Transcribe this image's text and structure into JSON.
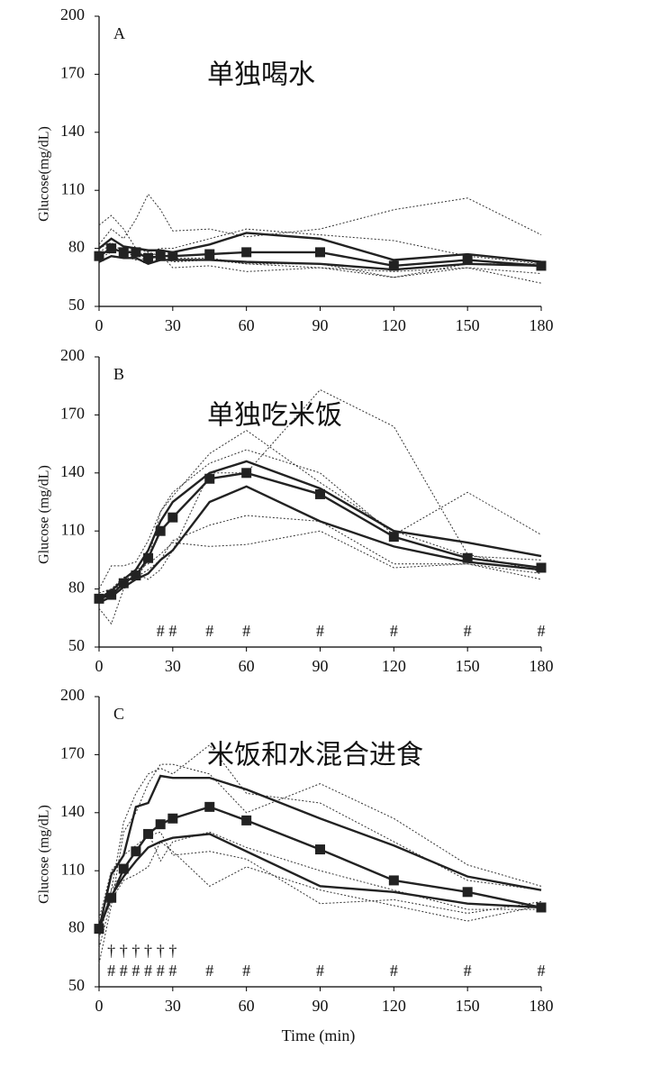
{
  "chart_data": [
    {
      "type": "line",
      "panel_label": "A",
      "title": "单独喝水",
      "title_color": "#e8392a",
      "ylabel": "Glucose(mg/dL)",
      "x": [
        0,
        5,
        10,
        15,
        20,
        25,
        30,
        45,
        60,
        90,
        120,
        150,
        180
      ],
      "xlim": [
        0,
        180
      ],
      "xticks": [
        0,
        30,
        60,
        90,
        120,
        150,
        180
      ],
      "ylim": [
        50,
        200
      ],
      "yticks": [
        50,
        80,
        110,
        140,
        170,
        200
      ],
      "series": [
        {
          "color": "#333333",
          "dash": true,
          "values": [
            92,
            97,
            90,
            80,
            78,
            76,
            73,
            74,
            72,
            70,
            68,
            70,
            62
          ]
        },
        {
          "color": "#333333",
          "dash": true,
          "values": [
            82,
            90,
            85,
            95,
            108,
            100,
            89,
            90,
            86,
            90,
            100,
            106,
            87
          ]
        },
        {
          "color": "#333333",
          "dash": true,
          "values": [
            75,
            78,
            80,
            77,
            76,
            78,
            75,
            75,
            72,
            72,
            65,
            70,
            67
          ]
        },
        {
          "color": "#333333",
          "dash": true,
          "values": [
            78,
            82,
            76,
            74,
            75,
            77,
            70,
            71,
            68,
            70,
            65,
            72,
            72
          ]
        },
        {
          "color": "#333333",
          "dash": true,
          "values": [
            80,
            83,
            78,
            76,
            78,
            80,
            80,
            85,
            90,
            87,
            84,
            76,
            72
          ]
        },
        {
          "color": "#222222",
          "dash": false,
          "values": [
            80,
            85,
            81,
            80,
            79,
            79,
            78,
            82,
            88,
            85,
            74,
            77,
            73
          ]
        },
        {
          "color": "#222222",
          "dash": false,
          "values": [
            73,
            76,
            75,
            75,
            72,
            74,
            74,
            74,
            73,
            72,
            69,
            72,
            71
          ]
        },
        {
          "color": "#222222",
          "dash": false,
          "marker": "square",
          "values": [
            76,
            80,
            78,
            78,
            75,
            76,
            76,
            77,
            78,
            78,
            71,
            74,
            71
          ]
        }
      ]
    },
    {
      "type": "line",
      "panel_label": "B",
      "title": "单独吃米饭",
      "title_color": "#e8392a",
      "ylabel": "Glucose (mg/dL)",
      "x": [
        0,
        5,
        10,
        15,
        20,
        25,
        30,
        45,
        60,
        90,
        120,
        150,
        180
      ],
      "xlim": [
        0,
        180
      ],
      "xticks": [
        0,
        30,
        60,
        90,
        120,
        150,
        180
      ],
      "ylim": [
        50,
        200
      ],
      "yticks": [
        50,
        80,
        110,
        140,
        170,
        200
      ],
      "series": [
        {
          "color": "#333333",
          "dash": true,
          "values": [
            70,
            62,
            80,
            85,
            95,
            120,
            130,
            145,
            152,
            140,
            108,
            130,
            108
          ]
        },
        {
          "color": "#333333",
          "dash": true,
          "values": [
            80,
            92,
            92,
            94,
            105,
            120,
            128,
            150,
            162,
            135,
            110,
            97,
            95
          ]
        },
        {
          "color": "#333333",
          "dash": true,
          "values": [
            75,
            80,
            86,
            88,
            85,
            90,
            100,
            140,
            140,
            183,
            164,
            98,
            89
          ]
        },
        {
          "color": "#333333",
          "dash": true,
          "values": [
            78,
            80,
            83,
            90,
            93,
            98,
            104,
            102,
            103,
            110,
            91,
            93,
            85
          ]
        },
        {
          "color": "#333333",
          "dash": true,
          "values": [
            74,
            78,
            84,
            86,
            90,
            95,
            105,
            113,
            118,
            115,
            93,
            93,
            88
          ]
        },
        {
          "color": "#222222",
          "dash": false,
          "values": [
            75,
            79,
            85,
            90,
            100,
            115,
            125,
            140,
            146,
            132,
            110,
            104,
            97
          ]
        },
        {
          "color": "#222222",
          "dash": false,
          "values": [
            73,
            76,
            81,
            85,
            88,
            95,
            100,
            125,
            133,
            115,
            102,
            94,
            90
          ]
        },
        {
          "color": "#222222",
          "dash": false,
          "marker": "square",
          "values": [
            75,
            77,
            83,
            87,
            96,
            110,
            117,
            137,
            140,
            129,
            107,
            96,
            91
          ]
        }
      ],
      "significance_hash": [
        {
          "x": 25,
          "text": "#"
        },
        {
          "x": 30,
          "text": "#"
        },
        {
          "x": 45,
          "text": "#"
        },
        {
          "x": 60,
          "text": "#"
        },
        {
          "x": 90,
          "text": "#"
        },
        {
          "x": 120,
          "text": "#"
        },
        {
          "x": 150,
          "text": "#"
        },
        {
          "x": 180,
          "text": "#"
        }
      ]
    },
    {
      "type": "line",
      "panel_label": "C",
      "title": "米饭和水混合进食",
      "title_color": "#e8392a",
      "ylabel": "Glucose (mg/dL)",
      "xlabel": "Time (min)",
      "x": [
        0,
        5,
        10,
        15,
        20,
        25,
        30,
        45,
        60,
        90,
        120,
        150,
        180
      ],
      "xlim": [
        0,
        180
      ],
      "xticks": [
        0,
        30,
        60,
        90,
        120,
        150,
        180
      ],
      "ylim": [
        50,
        200
      ],
      "yticks": [
        50,
        80,
        110,
        140,
        170,
        200
      ],
      "series": [
        {
          "color": "#333333",
          "dash": true,
          "values": [
            62,
            92,
            130,
            140,
            155,
            165,
            165,
            160,
            140,
            155,
            137,
            113,
            102
          ]
        },
        {
          "color": "#333333",
          "dash": true,
          "values": [
            75,
            100,
            135,
            150,
            160,
            163,
            160,
            175,
            150,
            145,
            125,
            105,
            100
          ]
        },
        {
          "color": "#333333",
          "dash": true,
          "values": [
            70,
            95,
            105,
            108,
            112,
            125,
            120,
            102,
            112,
            100,
            92,
            84,
            92
          ]
        },
        {
          "color": "#333333",
          "dash": true,
          "values": [
            78,
            100,
            110,
            120,
            130,
            115,
            125,
            130,
            122,
            110,
            100,
            90,
            90
          ]
        },
        {
          "color": "#333333",
          "dash": true,
          "values": [
            85,
            110,
            118,
            123,
            128,
            130,
            118,
            120,
            116,
            93,
            95,
            88,
            94
          ]
        },
        {
          "color": "#222222",
          "dash": false,
          "values": [
            80,
            108,
            118,
            143,
            145,
            159,
            158,
            158,
            152,
            137,
            123,
            107,
            100
          ]
        },
        {
          "color": "#222222",
          "dash": false,
          "values": [
            80,
            97,
            107,
            115,
            122,
            125,
            127,
            129,
            120,
            102,
            99,
            93,
            91
          ]
        },
        {
          "color": "#222222",
          "dash": false,
          "marker": "square",
          "values": [
            80,
            96,
            111,
            120,
            129,
            134,
            137,
            143,
            136,
            121,
            105,
            99,
            91
          ]
        }
      ],
      "significance_dagger": [
        {
          "x": 5,
          "text": "†"
        },
        {
          "x": 10,
          "text": "†"
        },
        {
          "x": 15,
          "text": "†"
        },
        {
          "x": 20,
          "text": "†"
        },
        {
          "x": 25,
          "text": "†"
        },
        {
          "x": 30,
          "text": "†"
        }
      ],
      "significance_hash": [
        {
          "x": 5,
          "text": "#"
        },
        {
          "x": 10,
          "text": "#"
        },
        {
          "x": 15,
          "text": "#"
        },
        {
          "x": 20,
          "text": "#"
        },
        {
          "x": 25,
          "text": "#"
        },
        {
          "x": 30,
          "text": "#"
        },
        {
          "x": 45,
          "text": "#"
        },
        {
          "x": 60,
          "text": "#"
        },
        {
          "x": 90,
          "text": "#"
        },
        {
          "x": 120,
          "text": "#"
        },
        {
          "x": 150,
          "text": "#"
        },
        {
          "x": 180,
          "text": "#"
        }
      ]
    }
  ]
}
